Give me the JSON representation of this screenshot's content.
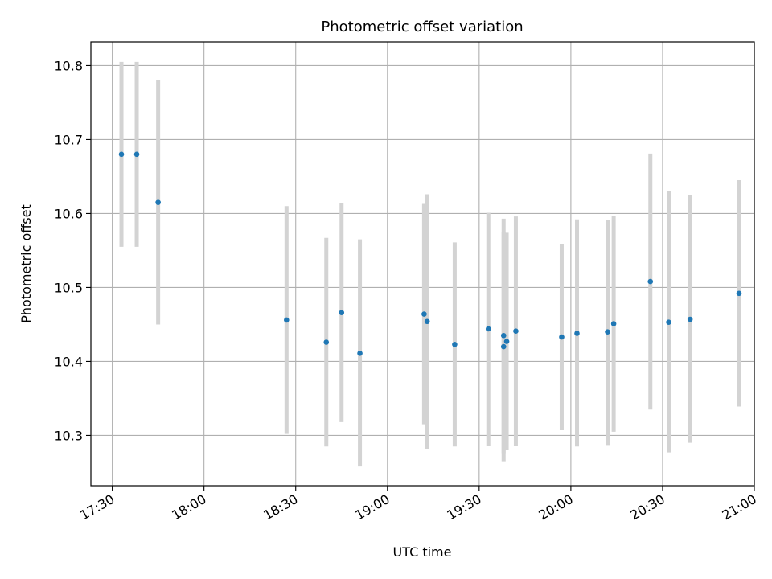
{
  "chart_data": {
    "type": "scatter",
    "title": "Photometric offset variation",
    "xlabel": "UTC time",
    "ylabel": "Photometric offset",
    "x_ticks": [
      "17:30",
      "18:00",
      "18:30",
      "19:00",
      "19:30",
      "20:00",
      "20:30",
      "21:00"
    ],
    "y_ticks": [
      "10.3",
      "10.4",
      "10.5",
      "10.6",
      "10.7",
      "10.8"
    ],
    "xlim": [
      "17:23",
      "21:00"
    ],
    "ylim": [
      10.232,
      10.832
    ],
    "grid": true,
    "colors": {
      "points": "#1f77b4",
      "errorbars": "#d3d3d3",
      "grid": "#b0b0b0"
    },
    "points": [
      {
        "t": "17:33",
        "y": 10.68,
        "lo": 10.555,
        "hi": 10.805
      },
      {
        "t": "17:38",
        "y": 10.68,
        "lo": 10.555,
        "hi": 10.805
      },
      {
        "t": "17:45",
        "y": 10.615,
        "lo": 10.45,
        "hi": 10.78
      },
      {
        "t": "18:27",
        "y": 10.456,
        "lo": 10.302,
        "hi": 10.61
      },
      {
        "t": "18:40",
        "y": 10.426,
        "lo": 10.285,
        "hi": 10.567
      },
      {
        "t": "18:45",
        "y": 10.466,
        "lo": 10.318,
        "hi": 10.614
      },
      {
        "t": "18:51",
        "y": 10.411,
        "lo": 10.258,
        "hi": 10.565
      },
      {
        "t": "19:12",
        "y": 10.464,
        "lo": 10.315,
        "hi": 10.613
      },
      {
        "t": "19:13",
        "y": 10.454,
        "lo": 10.282,
        "hi": 10.626
      },
      {
        "t": "19:22",
        "y": 10.423,
        "lo": 10.285,
        "hi": 10.561
      },
      {
        "t": "19:33",
        "y": 10.444,
        "lo": 10.286,
        "hi": 10.601
      },
      {
        "t": "19:38",
        "y": 10.435,
        "lo": 10.276,
        "hi": 10.593
      },
      {
        "t": "19:38",
        "y": 10.42,
        "lo": 10.265,
        "hi": 10.575
      },
      {
        "t": "19:39",
        "y": 10.427,
        "lo": 10.28,
        "hi": 10.574
      },
      {
        "t": "19:42",
        "y": 10.441,
        "lo": 10.286,
        "hi": 10.596
      },
      {
        "t": "19:57",
        "y": 10.433,
        "lo": 10.307,
        "hi": 10.559
      },
      {
        "t": "20:02",
        "y": 10.438,
        "lo": 10.285,
        "hi": 10.592
      },
      {
        "t": "20:12",
        "y": 10.44,
        "lo": 10.287,
        "hi": 10.591
      },
      {
        "t": "20:14",
        "y": 10.451,
        "lo": 10.305,
        "hi": 10.597
      },
      {
        "t": "20:26",
        "y": 10.508,
        "lo": 10.335,
        "hi": 10.681
      },
      {
        "t": "20:32",
        "y": 10.453,
        "lo": 10.277,
        "hi": 10.63
      },
      {
        "t": "20:39",
        "y": 10.457,
        "lo": 10.29,
        "hi": 10.625
      },
      {
        "t": "20:55",
        "y": 10.492,
        "lo": 10.339,
        "hi": 10.645
      }
    ]
  }
}
